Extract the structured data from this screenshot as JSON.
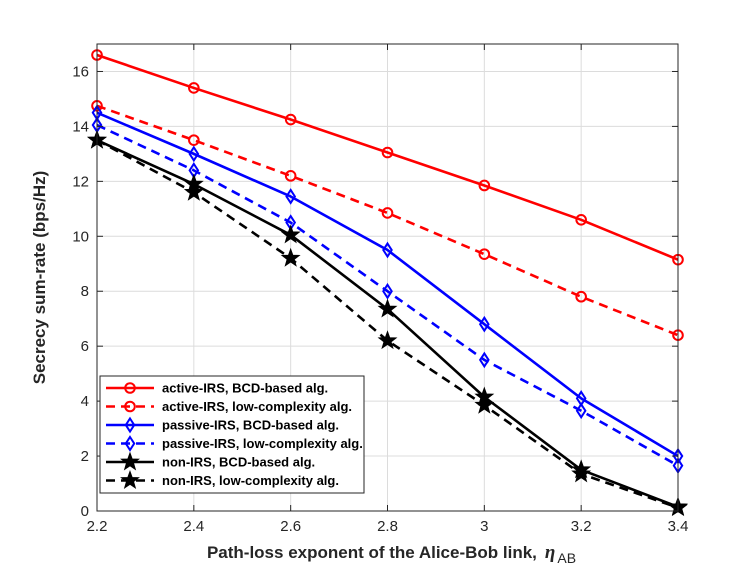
{
  "chart_data": {
    "type": "line",
    "title": "",
    "xlabel": "Path-loss exponent of the Alice-Bob link,",
    "xlabel_symbol": "η",
    "xlabel_subscript": "AB",
    "ylabel": "Secrecy sum-rate  (bps/Hz)",
    "xlim": [
      2.2,
      3.4
    ],
    "ylim": [
      0,
      17
    ],
    "xticks": [
      2.2,
      2.4,
      2.6,
      2.8,
      3,
      3.2,
      3.4
    ],
    "xtick_labels": [
      "2.2",
      "2.4",
      "2.6",
      "2.8",
      "3",
      "3.2",
      "3.4"
    ],
    "yticks": [
      0,
      2,
      4,
      6,
      8,
      10,
      12,
      14,
      16
    ],
    "ytick_labels": [
      "0",
      "2",
      "4",
      "6",
      "8",
      "10",
      "12",
      "14",
      "16"
    ],
    "grid": true,
    "legend_position": "bottom-left",
    "x": [
      2.2,
      2.4,
      2.6,
      2.8,
      3.0,
      3.2,
      3.4
    ],
    "series": [
      {
        "name": "active-IRS, BCD-based alg.",
        "color": "#ff0000",
        "dash": "solid",
        "marker": "circle",
        "values": [
          16.6,
          15.4,
          14.25,
          13.05,
          11.85,
          10.6,
          9.15
        ]
      },
      {
        "name": "active-IRS, low-complexity alg.",
        "color": "#ff0000",
        "dash": "dashed",
        "marker": "circle",
        "values": [
          14.75,
          13.5,
          12.2,
          10.85,
          9.35,
          7.8,
          6.4
        ]
      },
      {
        "name": "passive-IRS, BCD-based alg.",
        "color": "#0000ff",
        "dash": "solid",
        "marker": "diamond",
        "values": [
          14.5,
          13.0,
          11.45,
          9.5,
          6.8,
          4.1,
          2.0
        ]
      },
      {
        "name": "passive-IRS, low-complexity alg.",
        "color": "#0000ff",
        "dash": "dashed",
        "marker": "diamond",
        "values": [
          14.05,
          12.4,
          10.5,
          8.0,
          5.5,
          3.65,
          1.65
        ]
      },
      {
        "name": "non-IRS, BCD-based alg.",
        "color": "#000000",
        "dash": "solid",
        "marker": "star",
        "values": [
          13.5,
          11.9,
          10.05,
          7.35,
          4.15,
          1.5,
          0.15
        ]
      },
      {
        "name": "non-IRS, low-complexity alg.",
        "color": "#000000",
        "dash": "dashed",
        "marker": "star",
        "values": [
          13.5,
          11.6,
          9.2,
          6.2,
          3.85,
          1.35,
          0.12
        ]
      }
    ]
  }
}
